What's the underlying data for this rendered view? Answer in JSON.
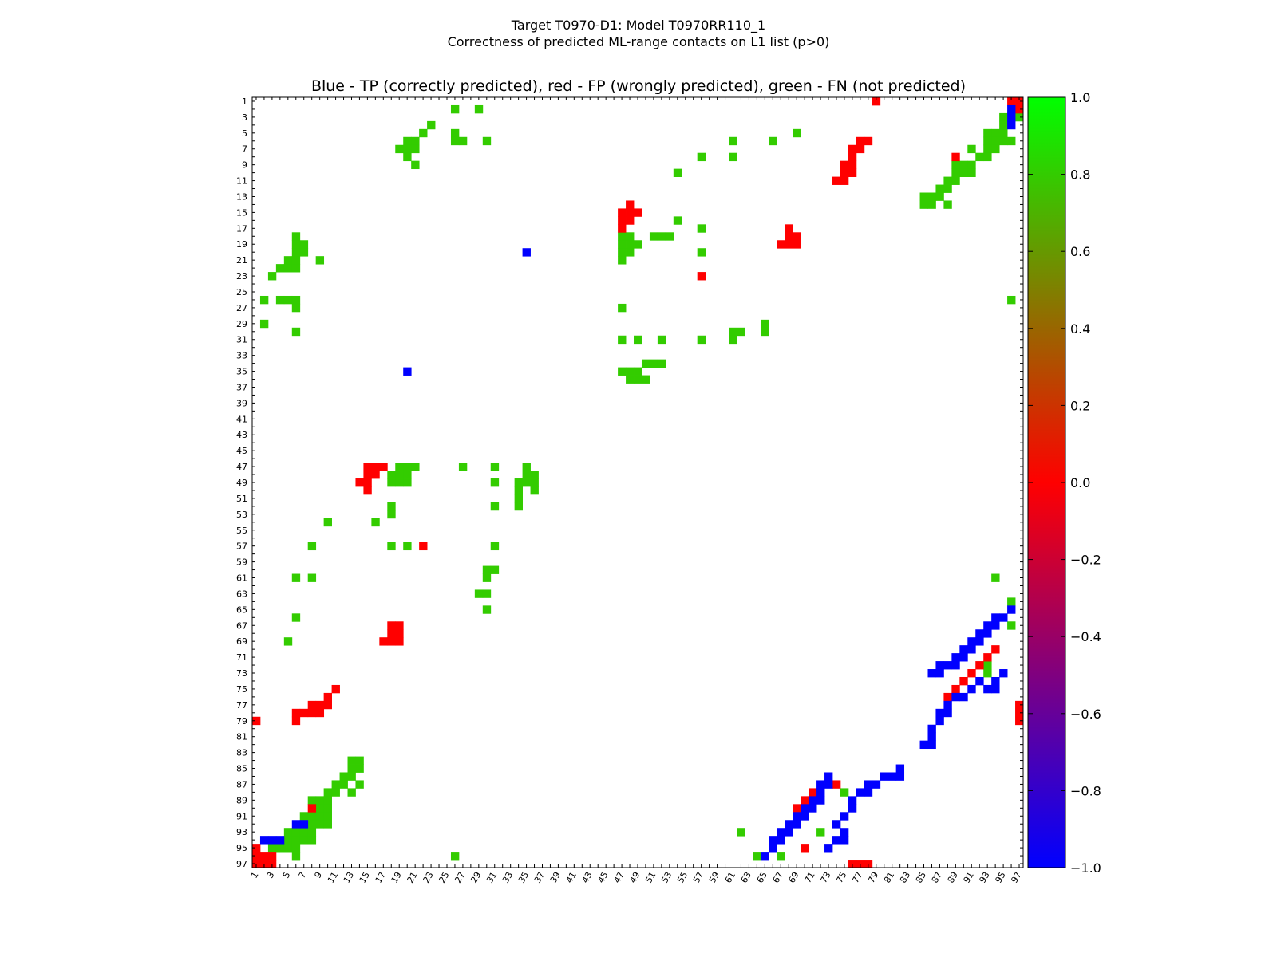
{
  "figure": {
    "title_line1": "Target T0970-D1: Model T0970RR110_1",
    "title_line2": "Correctness of predicted ML-range contacts on L1 list (p>0)"
  },
  "chart_data": {
    "type": "heatmap",
    "title": "Blue - TP (correctly predicted), red - FP (wrongly predicted), green - FN (not predicted)",
    "xlabel": "",
    "ylabel": "",
    "x_range": [
      1,
      97
    ],
    "y_range": [
      1,
      97
    ],
    "y_inverted": true,
    "x_tick_labels": [
      1,
      3,
      5,
      7,
      9,
      11,
      13,
      15,
      17,
      19,
      21,
      23,
      25,
      27,
      29,
      31,
      33,
      35,
      37,
      39,
      41,
      43,
      45,
      47,
      49,
      51,
      53,
      55,
      57,
      59,
      61,
      63,
      65,
      67,
      69,
      71,
      73,
      75,
      77,
      79,
      81,
      83,
      85,
      87,
      89,
      91,
      93,
      95,
      97
    ],
    "y_tick_labels": [
      1,
      3,
      5,
      7,
      9,
      11,
      13,
      15,
      17,
      19,
      21,
      23,
      25,
      27,
      29,
      31,
      33,
      35,
      37,
      39,
      41,
      43,
      45,
      47,
      49,
      51,
      53,
      55,
      57,
      59,
      61,
      63,
      65,
      67,
      69,
      71,
      73,
      75,
      77,
      79,
      81,
      83,
      85,
      87,
      89,
      91,
      93,
      95,
      97
    ],
    "colorbar": {
      "range": [
        -1.0,
        1.0
      ],
      "tick_labels": [
        "1.0",
        "0.8",
        "0.6",
        "0.4",
        "0.2",
        "0.0",
        "−0.2",
        "−0.4",
        "−0.6",
        "−0.8",
        "−1.0"
      ],
      "stops": [
        {
          "value": -1.0,
          "color": "#0000ff"
        },
        {
          "value": 0.0,
          "color": "#ff0000"
        },
        {
          "value": 1.0,
          "color": "#00ff00"
        }
      ]
    },
    "legend": {
      "TP": "#0000ff",
      "FP": "#ff0000",
      "FN": "#33cc00"
    },
    "cells": {
      "TP": [
        [
          94,
          2
        ],
        [
          94,
          3
        ],
        [
          94,
          4
        ],
        [
          92,
          7
        ],
        [
          35,
          20
        ],
        [
          20,
          35
        ],
        [
          96,
          65
        ],
        [
          95,
          66
        ],
        [
          94,
          66
        ],
        [
          94,
          67
        ],
        [
          93,
          67
        ],
        [
          93,
          68
        ],
        [
          92,
          68
        ],
        [
          92,
          69
        ],
        [
          91,
          69
        ],
        [
          91,
          70
        ],
        [
          90,
          70
        ],
        [
          90,
          71
        ],
        [
          89,
          71
        ],
        [
          89,
          72
        ],
        [
          88,
          72
        ],
        [
          87,
          72
        ],
        [
          87,
          73
        ],
        [
          86,
          73
        ],
        [
          95,
          73
        ],
        [
          94,
          74
        ],
        [
          94,
          75
        ],
        [
          93,
          75
        ],
        [
          92,
          74
        ],
        [
          91,
          75
        ],
        [
          90,
          76
        ],
        [
          89,
          76
        ],
        [
          88,
          77
        ],
        [
          88,
          78
        ],
        [
          87,
          78
        ],
        [
          87,
          79
        ],
        [
          86,
          80
        ],
        [
          86,
          81
        ],
        [
          85,
          82
        ],
        [
          86,
          82
        ],
        [
          65,
          96
        ],
        [
          66,
          95
        ],
        [
          66,
          94
        ],
        [
          67,
          94
        ],
        [
          67,
          93
        ],
        [
          68,
          93
        ],
        [
          68,
          92
        ],
        [
          69,
          92
        ],
        [
          69,
          91
        ],
        [
          70,
          91
        ],
        [
          70,
          90
        ],
        [
          71,
          90
        ],
        [
          71,
          89
        ],
        [
          72,
          89
        ],
        [
          72,
          88
        ],
        [
          72,
          87
        ],
        [
          73,
          87
        ],
        [
          73,
          86
        ],
        [
          73,
          95
        ],
        [
          74,
          94
        ],
        [
          75,
          94
        ],
        [
          75,
          93
        ],
        [
          74,
          92
        ],
        [
          75,
          91
        ],
        [
          76,
          90
        ],
        [
          76,
          89
        ],
        [
          77,
          88
        ],
        [
          78,
          88
        ],
        [
          78,
          87
        ],
        [
          79,
          87
        ],
        [
          80,
          86
        ],
        [
          81,
          86
        ],
        [
          82,
          85
        ],
        [
          82,
          86
        ],
        [
          2,
          96
        ],
        [
          3,
          96
        ],
        [
          4,
          96
        ],
        [
          92,
          6
        ]
      ],
      "FP": [
        [
          1,
          79
        ],
        [
          95,
          1
        ],
        [
          96,
          1
        ],
        [
          96,
          2
        ],
        [
          79,
          1
        ],
        [
          90,
          8
        ],
        [
          89,
          72
        ],
        [
          92,
          68
        ],
        [
          95,
          70
        ],
        [
          88,
          71
        ],
        [
          90,
          69
        ],
        [
          89,
          70
        ],
        [
          75,
          11
        ],
        [
          76,
          10
        ],
        [
          77,
          9
        ],
        [
          77,
          8
        ],
        [
          78,
          7
        ],
        [
          78,
          6
        ],
        [
          79,
          6
        ],
        [
          78,
          8
        ],
        [
          78,
          9
        ],
        [
          77,
          10
        ],
        [
          47,
          15
        ],
        [
          47,
          16
        ],
        [
          47,
          17
        ],
        [
          48,
          15
        ],
        [
          48,
          16
        ],
        [
          49,
          14
        ],
        [
          49,
          15
        ],
        [
          50,
          15
        ],
        [
          67,
          18
        ],
        [
          67,
          19
        ],
        [
          68,
          18
        ],
        [
          68,
          19
        ],
        [
          69,
          17
        ],
        [
          69,
          18
        ],
        [
          69,
          19
        ],
        [
          57,
          22
        ],
        [
          23,
          57
        ],
        [
          14,
          48
        ],
        [
          15,
          47
        ],
        [
          15,
          48
        ],
        [
          15,
          49
        ],
        [
          16,
          47
        ],
        [
          16,
          48
        ],
        [
          17,
          47
        ],
        [
          18,
          69
        ],
        [
          18,
          68
        ],
        [
          19,
          67
        ],
        [
          19,
          68
        ],
        [
          19,
          69
        ],
        [
          17,
          68
        ],
        [
          6,
          77
        ],
        [
          6,
          78
        ],
        [
          7,
          76
        ],
        [
          7,
          77
        ],
        [
          8,
          76
        ],
        [
          9,
          75
        ],
        [
          9,
          76
        ],
        [
          10,
          75
        ],
        [
          10,
          76
        ],
        [
          11,
          74
        ],
        [
          11,
          75
        ],
        [
          8,
          89
        ],
        [
          70,
          94
        ],
        [
          71,
          93
        ],
        [
          72,
          92
        ],
        [
          73,
          91
        ],
        [
          74,
          90
        ],
        [
          75,
          89
        ],
        [
          76,
          88
        ],
        [
          87,
          74
        ],
        [
          97,
          1
        ],
        [
          97,
          2
        ],
        [
          96,
          3
        ],
        [
          97,
          3
        ],
        [
          97,
          76
        ],
        [
          97,
          77
        ],
        [
          97,
          78
        ],
        [
          1,
          96
        ],
        [
          2,
          97
        ],
        [
          1,
          97
        ],
        [
          77,
          97
        ],
        [
          78,
          97
        ],
        [
          79,
          97
        ]
      ],
      "FN": [
        [
          2,
          26
        ],
        [
          2,
          29
        ],
        [
          5,
          26
        ],
        [
          6,
          26
        ],
        [
          6,
          27
        ],
        [
          6,
          30
        ],
        [
          5,
          22
        ],
        [
          4,
          23
        ],
        [
          6,
          21
        ],
        [
          6,
          20
        ],
        [
          7,
          19
        ],
        [
          7,
          20
        ],
        [
          7,
          21
        ],
        [
          8,
          20
        ],
        [
          9,
          21
        ],
        [
          5,
          69
        ],
        [
          6,
          61
        ],
        [
          6,
          66
        ],
        [
          8,
          57
        ],
        [
          8,
          61
        ],
        [
          10,
          54
        ],
        [
          3,
          95
        ],
        [
          4,
          95
        ],
        [
          5,
          94
        ],
        [
          5,
          93
        ],
        [
          5,
          95
        ],
        [
          6,
          93
        ],
        [
          6,
          94
        ],
        [
          6,
          95
        ],
        [
          6,
          96
        ],
        [
          7,
          93
        ],
        [
          7,
          94
        ],
        [
          7,
          91
        ],
        [
          8,
          92
        ],
        [
          8,
          93
        ],
        [
          9,
          89
        ],
        [
          9,
          90
        ],
        [
          9,
          91
        ],
        [
          10,
          89
        ],
        [
          10,
          90
        ],
        [
          10,
          91
        ],
        [
          11,
          88
        ],
        [
          11,
          89
        ],
        [
          12,
          87
        ],
        [
          12,
          88
        ],
        [
          13,
          85
        ],
        [
          13,
          86
        ],
        [
          13,
          87
        ],
        [
          14,
          85
        ],
        [
          14,
          86
        ],
        [
          14,
          88
        ],
        [
          3,
          97
        ],
        [
          16,
          54
        ],
        [
          17,
          47
        ],
        [
          17,
          57
        ],
        [
          18,
          47
        ],
        [
          18,
          48
        ],
        [
          18,
          51
        ],
        [
          18,
          52
        ],
        [
          18,
          53
        ],
        [
          19,
          47
        ],
        [
          19,
          48
        ],
        [
          19,
          49
        ],
        [
          20,
          47
        ],
        [
          20,
          48
        ],
        [
          20,
          57
        ],
        [
          21,
          47
        ],
        [
          18,
          6
        ],
        [
          19,
          6
        ],
        [
          19,
          7
        ],
        [
          20,
          6
        ],
        [
          20,
          7
        ],
        [
          21,
          5
        ],
        [
          21,
          6
        ],
        [
          21,
          9
        ],
        [
          22,
          4
        ],
        [
          22,
          5
        ],
        [
          22,
          6
        ],
        [
          23,
          3
        ],
        [
          26,
          2
        ],
        [
          26,
          4
        ],
        [
          26,
          5
        ],
        [
          26,
          6
        ],
        [
          27,
          6
        ],
        [
          29,
          2
        ],
        [
          30,
          6
        ],
        [
          26,
          96
        ],
        [
          27,
          47
        ],
        [
          29,
          65
        ],
        [
          30,
          61
        ],
        [
          30,
          62
        ],
        [
          30,
          65
        ],
        [
          31,
          47
        ],
        [
          31,
          49
        ],
        [
          31,
          52
        ],
        [
          31,
          57
        ],
        [
          31,
          61
        ],
        [
          34,
          50
        ],
        [
          34,
          51
        ],
        [
          34,
          52
        ],
        [
          35,
          47
        ],
        [
          35,
          48
        ],
        [
          35,
          49
        ],
        [
          36,
          48
        ],
        [
          36,
          49
        ],
        [
          36,
          50
        ],
        [
          47,
          19
        ],
        [
          47,
          20
        ],
        [
          47,
          21
        ],
        [
          48,
          18
        ],
        [
          48,
          19
        ],
        [
          48,
          20
        ],
        [
          49,
          18
        ],
        [
          49,
          19
        ],
        [
          49,
          20
        ],
        [
          47,
          27
        ],
        [
          47,
          31
        ],
        [
          49,
          31
        ],
        [
          47,
          35
        ],
        [
          48,
          35
        ],
        [
          48,
          36
        ],
        [
          49,
          34
        ],
        [
          49,
          35
        ],
        [
          49,
          36
        ],
        [
          50,
          34
        ],
        [
          50,
          36
        ],
        [
          51,
          34
        ],
        [
          52,
          34
        ],
        [
          52,
          31
        ],
        [
          52,
          18
        ],
        [
          53,
          18
        ],
        [
          54,
          10
        ],
        [
          54,
          16
        ],
        [
          57,
          8
        ],
        [
          57,
          18
        ],
        [
          57,
          20
        ],
        [
          57,
          31
        ],
        [
          60,
          30
        ],
        [
          60,
          31
        ],
        [
          61,
          6
        ],
        [
          61,
          8
        ],
        [
          61,
          30
        ],
        [
          61,
          94
        ],
        [
          63,
          29
        ],
        [
          63,
          30
        ],
        [
          64,
          96
        ],
        [
          65,
          30
        ],
        [
          66,
          6
        ],
        [
          67,
          96
        ],
        [
          69,
          5
        ],
        [
          72,
          93
        ],
        [
          73,
          93
        ],
        [
          76,
          88
        ],
        [
          78,
          88
        ],
        [
          84,
          13
        ],
        [
          84,
          14
        ],
        [
          85,
          13
        ],
        [
          85,
          14
        ],
        [
          86,
          12
        ],
        [
          86,
          13
        ],
        [
          87,
          11
        ],
        [
          87,
          12
        ],
        [
          87,
          14
        ],
        [
          88,
          10
        ],
        [
          88,
          11
        ],
        [
          88,
          13
        ],
        [
          89,
          8
        ],
        [
          89,
          9
        ],
        [
          89,
          10
        ],
        [
          90,
          8
        ],
        [
          90,
          9
        ],
        [
          90,
          10
        ],
        [
          91,
          7
        ],
        [
          91,
          8
        ],
        [
          91,
          9
        ],
        [
          91,
          10
        ],
        [
          92,
          8
        ],
        [
          92,
          9
        ],
        [
          92,
          10
        ],
        [
          93,
          5
        ],
        [
          93,
          6
        ],
        [
          93,
          7
        ],
        [
          93,
          8
        ],
        [
          94,
          5
        ],
        [
          94,
          6
        ],
        [
          94,
          7
        ],
        [
          94,
          8
        ],
        [
          95,
          3
        ],
        [
          95,
          4
        ],
        [
          95,
          5
        ],
        [
          95,
          6
        ],
        [
          96,
          6
        ],
        [
          97,
          3
        ],
        [
          88,
          75
        ],
        [
          93,
          62
        ],
        [
          96,
          64
        ],
        [
          96,
          67
        ],
        [
          93,
          72
        ],
        [
          96,
          26
        ]
      ]
    }
  }
}
